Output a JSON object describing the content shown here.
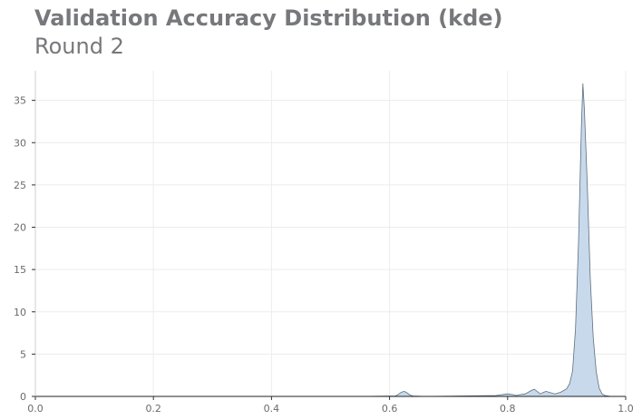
{
  "chart_data": {
    "type": "area",
    "title": "Validation Accuracy Distribution (kde)",
    "subtitle": "Round 2",
    "xlabel": "",
    "ylabel": "",
    "xlim": [
      0,
      1
    ],
    "ylim": [
      0,
      38.5
    ],
    "grid": true,
    "x_ticks": [
      0.0,
      0.2,
      0.4,
      0.6,
      0.8,
      1.0
    ],
    "x_tick_labels": [
      "0.0",
      "0.2",
      "0.4",
      "0.6",
      "0.8",
      "1.0"
    ],
    "y_ticks": [
      0,
      5,
      10,
      15,
      20,
      25,
      30,
      35
    ],
    "y_tick_labels": [
      "0",
      "5",
      "10",
      "15",
      "20",
      "25",
      "30",
      "35"
    ],
    "fill_color": "#c7d9ea",
    "line_color": "#5f6f7f",
    "series": [
      {
        "x": [
          0.0,
          0.55,
          0.61,
          0.615,
          0.62,
          0.625,
          0.63,
          0.635,
          0.64,
          0.66,
          0.72,
          0.78,
          0.795,
          0.8,
          0.81,
          0.815,
          0.82,
          0.83,
          0.84,
          0.845,
          0.85,
          0.855,
          0.86,
          0.865,
          0.87,
          0.88,
          0.89,
          0.9,
          0.905,
          0.91,
          0.915,
          0.92,
          0.925,
          0.9275,
          0.93,
          0.935,
          0.94,
          0.945,
          0.95,
          0.955,
          0.96,
          0.965,
          0.97,
          0.975,
          0.98
        ],
        "y": [
          0.0,
          0.0,
          0.05,
          0.25,
          0.5,
          0.6,
          0.4,
          0.15,
          0.05,
          0.0,
          0.05,
          0.1,
          0.25,
          0.3,
          0.2,
          0.1,
          0.2,
          0.3,
          0.7,
          0.85,
          0.6,
          0.3,
          0.45,
          0.6,
          0.5,
          0.3,
          0.5,
          0.9,
          1.5,
          3.0,
          8.0,
          18.0,
          32.0,
          37.0,
          34.0,
          25.0,
          14.0,
          7.0,
          3.0,
          1.0,
          0.3,
          0.1,
          0.05,
          0.0,
          0.0
        ]
      }
    ]
  }
}
